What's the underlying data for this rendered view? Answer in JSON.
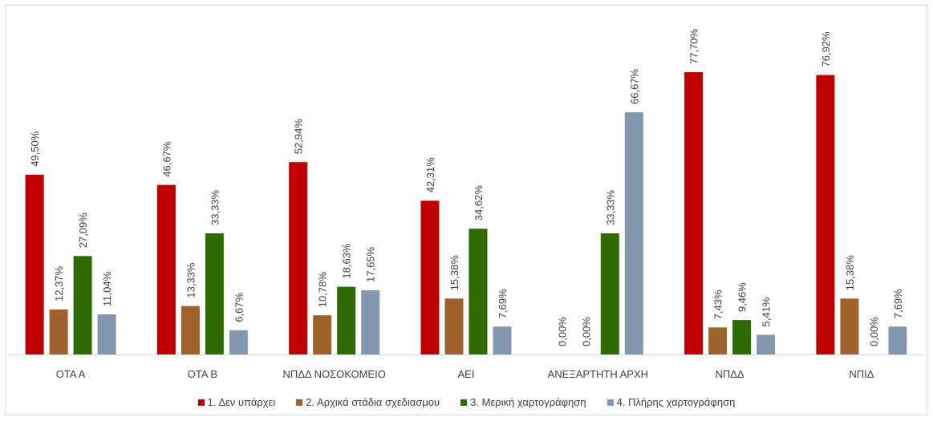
{
  "chart_data": {
    "type": "bar",
    "categories": [
      "ΟΤΑ Α",
      "ΟΤΑ Β",
      "ΝΠΔΔ ΝΟΣΟΚΟΜΕΙΟ",
      "ΑΕΙ",
      "ΑΝΕΞΑΡΤΗΤΗ ΑΡΧΗ",
      "ΝΠΔΔ",
      "ΝΠΙΔ"
    ],
    "series": [
      {
        "name": "1. Δεν υπάρχει",
        "color": "#C00000",
        "values": [
          49.5,
          46.67,
          52.94,
          42.31,
          0.0,
          77.7,
          76.92
        ],
        "labels": [
          "49,50%",
          "46,67%",
          "52,94%",
          "42,31%",
          "0,00%",
          "77,70%",
          "76,92%"
        ]
      },
      {
        "name": "2. Αρχικά στάδια σχεδιασμου",
        "color": "#A0622D",
        "values": [
          12.37,
          13.33,
          10.78,
          15.38,
          0.0,
          7.43,
          15.38
        ],
        "labels": [
          "12,37%",
          "13,33%",
          "10,78%",
          "15,38%",
          "0,00%",
          "7,43%",
          "15,38%"
        ]
      },
      {
        "name": "3. Μερική χαρτογράφηση",
        "color": "#2E6B00",
        "values": [
          27.09,
          33.33,
          18.63,
          34.62,
          33.33,
          9.46,
          0.0
        ],
        "labels": [
          "27,09%",
          "33,33%",
          "18,63%",
          "34,62%",
          "33,33%",
          "9,46%",
          "0,00%"
        ]
      },
      {
        "name": "4. Πλήρης χαρτογράφηση",
        "color": "#8497B0",
        "values": [
          11.04,
          6.67,
          17.65,
          7.69,
          66.67,
          5.41,
          7.69
        ],
        "labels": [
          "11,04%",
          "6,67%",
          "17,65%",
          "7,69%",
          "66,67%",
          "5,41%",
          "7,69%"
        ]
      }
    ],
    "ylim": [
      0,
      100
    ],
    "grid": false,
    "legend_position": "bottom"
  }
}
